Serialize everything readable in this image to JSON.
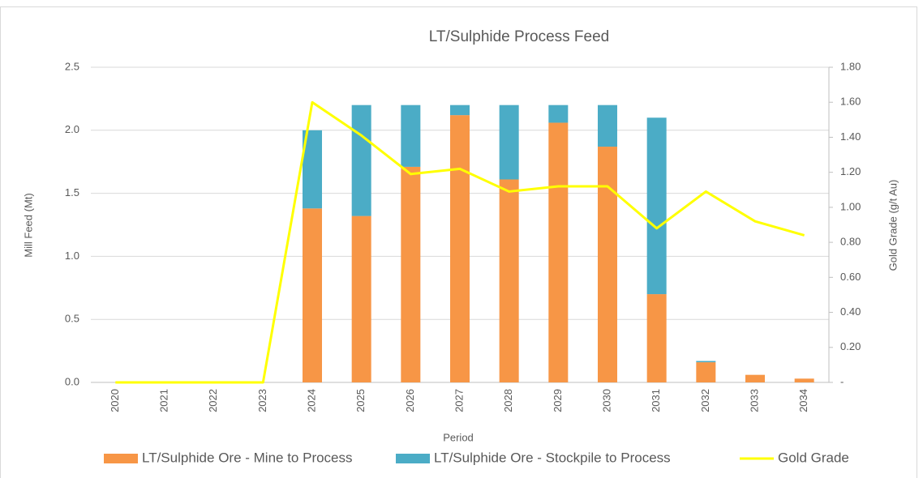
{
  "chart_data": {
    "type": "bar",
    "title": "LT/Sulphide Process Feed",
    "x_label": "Period",
    "y_label": "Mill Feed (Mt)",
    "y2_label": "Gold Grade (g/t Au)",
    "stacked": true,
    "grid": true,
    "legend": "bottom",
    "categories": [
      "2020",
      "2021",
      "2022",
      "2023",
      "2024",
      "2025",
      "2026",
      "2027",
      "2028",
      "2029",
      "2030",
      "2031",
      "2032",
      "2033",
      "2034"
    ],
    "series": [
      {
        "name": "LT/Sulphide Ore - Mine to Process",
        "type": "bar",
        "color": "#f79646",
        "values": [
          0,
          0,
          0,
          0,
          1.38,
          1.32,
          1.71,
          2.12,
          1.61,
          2.06,
          1.87,
          0.7,
          0.16,
          0.06,
          0.03
        ]
      },
      {
        "name": "LT/Sulphide Ore - Stockpile to Process",
        "type": "bar",
        "color": "#4bacc6",
        "values": [
          0,
          0,
          0,
          0,
          0.62,
          0.88,
          0.49,
          0.08,
          0.59,
          0.14,
          0.33,
          1.4,
          0.01,
          0,
          0
        ]
      },
      {
        "name": "Gold Grade",
        "type": "line",
        "axis": "y2",
        "color": "#ffff00",
        "values": [
          0,
          0,
          0,
          0,
          1.6,
          1.41,
          1.19,
          1.22,
          1.09,
          1.12,
          1.12,
          0.88,
          1.09,
          0.92,
          0.84
        ]
      }
    ],
    "ylim": [
      0,
      2.5
    ],
    "yticks": [
      {
        "value": 0,
        "label": "0.0"
      },
      0.5,
      {
        "value": 1,
        "label": "1.0"
      },
      1.5,
      {
        "value": 2,
        "label": "2.0"
      },
      2.5
    ],
    "y2lim": [
      0,
      1.8
    ],
    "y2ticks": [
      {
        "value": 0,
        "label": "-"
      },
      {
        "value": 0.2,
        "label": "0.20"
      },
      {
        "value": 0.4,
        "label": "0.40"
      },
      {
        "value": 0.6,
        "label": "0.60"
      },
      {
        "value": 0.8,
        "label": "0.80"
      },
      {
        "value": 1,
        "label": "1.00"
      },
      {
        "value": 1.2,
        "label": "1.20"
      },
      {
        "value": 1.4,
        "label": "1.40"
      },
      {
        "value": 1.6,
        "label": "1.60"
      },
      {
        "value": 1.8,
        "label": "1.80"
      }
    ]
  }
}
